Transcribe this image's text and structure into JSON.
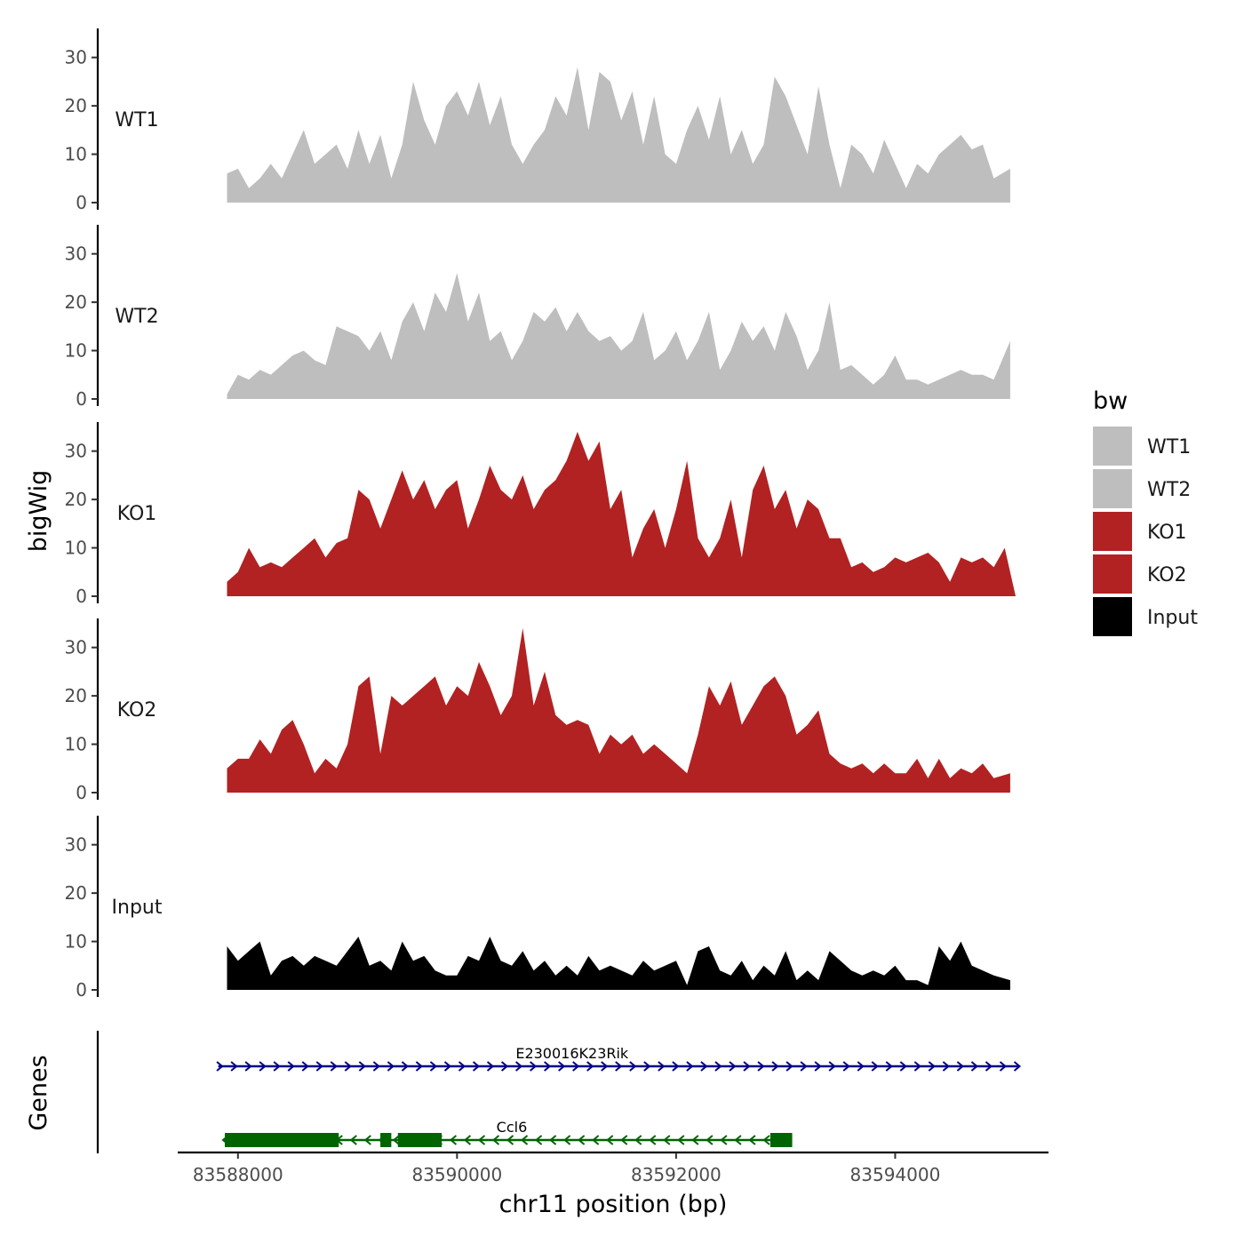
{
  "chart_data": {
    "type": "area",
    "xlabel": "chr11 position (bp)",
    "ylabel": "bigWig",
    "genes_label": "Genes",
    "xlim": [
      83587450,
      83595400
    ],
    "ylim": [
      0,
      36
    ],
    "x_ticks": [
      83588000,
      83590000,
      83592000,
      83594000
    ],
    "x_tick_labels": [
      "83588000",
      "83590000",
      "83592000",
      "83594000"
    ],
    "y_ticks": [
      0,
      10,
      20,
      30
    ],
    "y_tick_labels": [
      "0",
      "10",
      "20",
      "30"
    ],
    "legend": {
      "title": "bw",
      "entries": [
        {
          "label": "WT1",
          "color": "#bebebe"
        },
        {
          "label": "WT2",
          "color": "#bebebe"
        },
        {
          "label": "KO1",
          "color": "#b22222"
        },
        {
          "label": "KO2",
          "color": "#b22222"
        },
        {
          "label": "Input",
          "color": "#000000"
        }
      ]
    },
    "series": [
      {
        "name": "WT1",
        "color": "#bebebe",
        "x": [
          83587900,
          83588000,
          83588100,
          83588200,
          83588300,
          83588400,
          83588500,
          83588600,
          83588700,
          83588800,
          83588900,
          83589000,
          83589100,
          83589200,
          83589300,
          83589400,
          83589500,
          83589600,
          83589700,
          83589800,
          83589900,
          83590000,
          83590100,
          83590200,
          83590300,
          83590400,
          83590500,
          83590600,
          83590700,
          83590800,
          83590900,
          83591000,
          83591100,
          83591200,
          83591300,
          83591400,
          83591500,
          83591600,
          83591700,
          83591800,
          83591900,
          83592000,
          83592100,
          83592200,
          83592300,
          83592400,
          83592500,
          83592600,
          83592700,
          83592800,
          83592900,
          83593000,
          83593100,
          83593200,
          83593300,
          83593400,
          83593500,
          83593600,
          83593700,
          83593800,
          83593900,
          83594000,
          83594100,
          83594200,
          83594300,
          83594400,
          83594500,
          83594600,
          83594700,
          83594800,
          83594900,
          83595050
        ],
        "values": [
          6,
          7,
          3,
          5,
          8,
          5,
          10,
          15,
          8,
          10,
          12,
          7,
          15,
          8,
          14,
          5,
          12,
          25,
          17,
          12,
          20,
          23,
          18,
          25,
          16,
          22,
          12,
          8,
          12,
          15,
          22,
          18,
          28,
          15,
          27,
          25,
          17,
          23,
          12,
          22,
          10,
          8,
          15,
          20,
          13,
          22,
          10,
          15,
          8,
          12,
          26,
          22,
          16,
          10,
          24,
          12,
          3,
          12,
          10,
          6,
          13,
          8,
          3,
          8,
          6,
          10,
          12,
          14,
          11,
          12,
          5,
          7
        ]
      },
      {
        "name": "WT2",
        "color": "#bebebe",
        "x": [
          83587900,
          83588000,
          83588100,
          83588200,
          83588300,
          83588400,
          83588500,
          83588600,
          83588700,
          83588800,
          83588900,
          83589000,
          83589100,
          83589200,
          83589300,
          83589400,
          83589500,
          83589600,
          83589700,
          83589800,
          83589900,
          83590000,
          83590100,
          83590200,
          83590300,
          83590400,
          83590500,
          83590600,
          83590700,
          83590800,
          83590900,
          83591000,
          83591100,
          83591200,
          83591300,
          83591400,
          83591500,
          83591600,
          83591700,
          83591800,
          83591900,
          83592000,
          83592100,
          83592200,
          83592300,
          83592400,
          83592500,
          83592600,
          83592700,
          83592800,
          83592900,
          83593000,
          83593100,
          83593200,
          83593300,
          83593400,
          83593500,
          83593600,
          83593700,
          83593800,
          83593900,
          83594000,
          83594100,
          83594200,
          83594300,
          83594400,
          83594500,
          83594600,
          83594700,
          83594800,
          83594900,
          83595050
        ],
        "values": [
          1,
          5,
          4,
          6,
          5,
          7,
          9,
          10,
          8,
          7,
          15,
          14,
          13,
          10,
          14,
          8,
          16,
          20,
          14,
          22,
          18,
          26,
          16,
          22,
          12,
          14,
          8,
          12,
          18,
          16,
          19,
          14,
          18,
          14,
          12,
          13,
          10,
          12,
          18,
          8,
          10,
          14,
          8,
          12,
          18,
          6,
          10,
          16,
          12,
          15,
          10,
          18,
          13,
          6,
          10,
          20,
          6,
          7,
          5,
          3,
          5,
          9,
          4,
          4,
          3,
          4,
          5,
          6,
          5,
          5,
          4,
          12
        ]
      },
      {
        "name": "KO1",
        "color": "#b22222",
        "x": [
          83587900,
          83588000,
          83588100,
          83588200,
          83588300,
          83588400,
          83588500,
          83588600,
          83588700,
          83588800,
          83588900,
          83589000,
          83589100,
          83589200,
          83589300,
          83589400,
          83589500,
          83589600,
          83589700,
          83589800,
          83589900,
          83590000,
          83590100,
          83590200,
          83590300,
          83590400,
          83590500,
          83590600,
          83590700,
          83590800,
          83590900,
          83591000,
          83591100,
          83591200,
          83591300,
          83591400,
          83591500,
          83591600,
          83591700,
          83591800,
          83591900,
          83592000,
          83592100,
          83592200,
          83592300,
          83592400,
          83592500,
          83592600,
          83592700,
          83592800,
          83592900,
          83593000,
          83593100,
          83593200,
          83593300,
          83593400,
          83593500,
          83593600,
          83593700,
          83593800,
          83593900,
          83594000,
          83594100,
          83594200,
          83594300,
          83594400,
          83594500,
          83594600,
          83594700,
          83594800,
          83594900,
          83595000,
          83595100
        ],
        "values": [
          3,
          5,
          10,
          6,
          7,
          6,
          8,
          10,
          12,
          8,
          11,
          12,
          22,
          20,
          14,
          20,
          26,
          20,
          24,
          18,
          22,
          24,
          14,
          20,
          27,
          22,
          20,
          25,
          18,
          22,
          24,
          28,
          34,
          28,
          32,
          18,
          22,
          8,
          14,
          18,
          10,
          18,
          28,
          12,
          8,
          12,
          20,
          8,
          22,
          27,
          18,
          22,
          14,
          20,
          18,
          12,
          12,
          6,
          7,
          5,
          6,
          8,
          7,
          8,
          9,
          7,
          3,
          8,
          7,
          8,
          6,
          10,
          0
        ]
      },
      {
        "name": "KO2",
        "color": "#b22222",
        "x": [
          83587900,
          83588000,
          83588100,
          83588200,
          83588300,
          83588400,
          83588500,
          83588600,
          83588700,
          83588800,
          83588900,
          83589000,
          83589100,
          83589200,
          83589300,
          83589400,
          83589500,
          83589600,
          83589700,
          83589800,
          83589900,
          83590000,
          83590100,
          83590200,
          83590300,
          83590400,
          83590500,
          83590600,
          83590700,
          83590800,
          83590900,
          83591000,
          83591100,
          83591200,
          83591300,
          83591400,
          83591500,
          83591600,
          83591700,
          83591800,
          83591900,
          83592000,
          83592100,
          83592200,
          83592300,
          83592400,
          83592500,
          83592600,
          83592700,
          83592800,
          83592900,
          83593000,
          83593100,
          83593200,
          83593300,
          83593400,
          83593500,
          83593600,
          83593700,
          83593800,
          83593900,
          83594000,
          83594100,
          83594200,
          83594300,
          83594400,
          83594500,
          83594600,
          83594700,
          83594800,
          83594900,
          83595050
        ],
        "values": [
          5,
          7,
          7,
          11,
          8,
          13,
          15,
          10,
          4,
          7,
          5,
          10,
          22,
          24,
          8,
          20,
          18,
          20,
          22,
          24,
          18,
          22,
          20,
          27,
          22,
          16,
          20,
          34,
          18,
          25,
          16,
          14,
          15,
          14,
          8,
          12,
          10,
          12,
          8,
          10,
          8,
          6,
          4,
          12,
          22,
          18,
          23,
          14,
          18,
          22,
          24,
          20,
          12,
          14,
          17,
          8,
          6,
          5,
          6,
          4,
          6,
          4,
          4,
          7,
          3,
          7,
          3,
          5,
          4,
          6,
          3,
          4
        ]
      },
      {
        "name": "Input",
        "color": "#000000",
        "x": [
          83587900,
          83588000,
          83588100,
          83588200,
          83588300,
          83588400,
          83588500,
          83588600,
          83588700,
          83588800,
          83588900,
          83589000,
          83589100,
          83589200,
          83589300,
          83589400,
          83589500,
          83589600,
          83589700,
          83589800,
          83589900,
          83590000,
          83590100,
          83590200,
          83590300,
          83590400,
          83590500,
          83590600,
          83590700,
          83590800,
          83590900,
          83591000,
          83591100,
          83591200,
          83591300,
          83591400,
          83591500,
          83591600,
          83591700,
          83591800,
          83591900,
          83592000,
          83592100,
          83592200,
          83592300,
          83592400,
          83592500,
          83592600,
          83592700,
          83592800,
          83592900,
          83593000,
          83593100,
          83593200,
          83593300,
          83593400,
          83593500,
          83593600,
          83593700,
          83593800,
          83593900,
          83594000,
          83594100,
          83594200,
          83594300,
          83594400,
          83594500,
          83594600,
          83594700,
          83594800,
          83594900,
          83595050
        ],
        "values": [
          9,
          6,
          8,
          10,
          3,
          6,
          7,
          5,
          7,
          6,
          5,
          8,
          11,
          5,
          6,
          4,
          10,
          6,
          7,
          4,
          3,
          3,
          7,
          6,
          11,
          6,
          5,
          8,
          4,
          6,
          3,
          5,
          3,
          7,
          4,
          5,
          4,
          3,
          6,
          4,
          5,
          6,
          1,
          8,
          9,
          4,
          3,
          6,
          2,
          5,
          3,
          8,
          2,
          4,
          2,
          8,
          6,
          4,
          3,
          4,
          3,
          5,
          2,
          2,
          1,
          9,
          6,
          10,
          5,
          4,
          3,
          2
        ]
      }
    ],
    "genes": [
      {
        "name": "E230016K23Rik",
        "strand": "+",
        "color": "#00008b",
        "start": 83587820,
        "end": 83595120,
        "exons": []
      },
      {
        "name": "Ccl6",
        "strand": "-",
        "color": "#006400",
        "start": 83587860,
        "end": 83593060,
        "exons": [
          [
            83587880,
            83588920
          ],
          [
            83589300,
            83589400
          ],
          [
            83589460,
            83589860
          ],
          [
            83592860,
            83593060
          ]
        ]
      }
    ]
  }
}
